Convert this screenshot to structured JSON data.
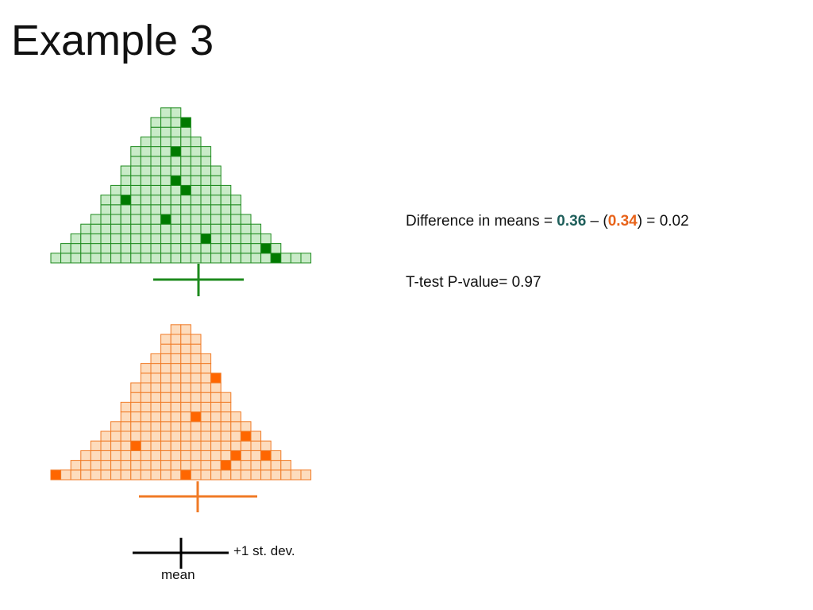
{
  "slide": {
    "title": "Example 3"
  },
  "stats": {
    "diff_prefix": "Difference in means = ",
    "mean_a": "0.36",
    "sep1": " – (",
    "mean_b": "0.34",
    "sep2": ") = ",
    "diff_value": "0.02",
    "pvalue_label": "T-test P-value= 0.97"
  },
  "legend": {
    "sd_label": "+1 st. dev.",
    "mean_label": "mean"
  },
  "colors": {
    "green_fill": "#c9ebc8",
    "green_stroke": "#1d8a1d",
    "green_dark": "#007a00",
    "orange_fill": "#fddcbd",
    "orange_stroke": "#f07a25",
    "orange_dark": "#ff6600",
    "axis_black": "#000000"
  },
  "chart_data": [
    {
      "type": "dotplot",
      "series": "green",
      "column_heights": [
        1,
        2,
        3,
        4,
        5,
        7,
        8,
        10,
        12,
        13,
        15,
        16,
        16,
        15,
        13,
        12,
        10,
        8,
        7,
        5,
        4,
        3,
        2,
        1,
        1,
        1
      ],
      "highlighted_cells": [
        [
          13,
          15
        ],
        [
          12,
          12
        ],
        [
          13,
          8
        ],
        [
          12,
          9
        ],
        [
          7,
          7
        ],
        [
          11,
          5
        ],
        [
          3,
          6
        ],
        [
          20,
          5
        ],
        [
          21,
          5
        ],
        [
          15,
          3
        ],
        [
          21,
          2
        ],
        [
          22,
          1
        ]
      ],
      "mean_marker": "center tick with ±1 st. dev. bar"
    },
    {
      "type": "dotplot",
      "series": "orange",
      "column_heights": [
        1,
        1,
        2,
        3,
        4,
        5,
        6,
        8,
        10,
        12,
        13,
        15,
        16,
        16,
        15,
        13,
        11,
        9,
        7,
        6,
        5,
        4,
        3,
        2,
        1,
        1
      ],
      "highlighted_cells": [
        [
          16,
          11
        ],
        [
          18,
          8
        ],
        [
          14,
          7
        ],
        [
          19,
          5
        ],
        [
          8,
          4
        ],
        [
          21,
          3
        ],
        [
          18,
          3
        ],
        [
          17,
          2
        ],
        [
          0,
          1
        ],
        [
          13,
          1
        ]
      ],
      "mean_marker": "center tick with ±1 st. dev. bar"
    }
  ]
}
